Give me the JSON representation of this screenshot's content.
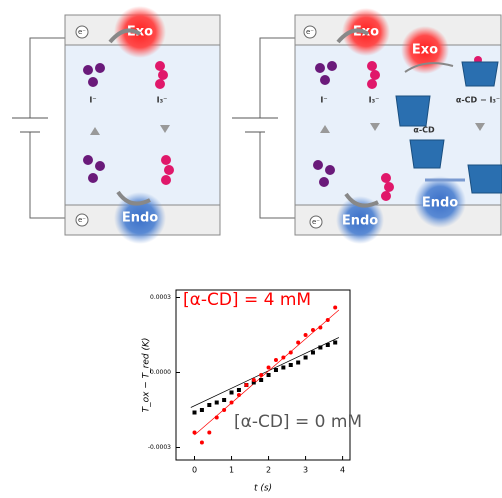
{
  "diagrams": [
    {
      "exo": "Exo",
      "endo": "Endo",
      "iodide": "I⁻",
      "triiodide": "I₃⁻",
      "electron_top": "e⁻",
      "electron_bottom": "e⁻"
    },
    {
      "exo_top": "Exo",
      "exo_right": "Exo",
      "endo_bottom": "Endo",
      "endo_right": "Endo",
      "iodide": "I⁻",
      "triiodide": "I₃⁻",
      "cd": "α-CD",
      "complex": "α-CD − I₃⁻",
      "electron_top": "e⁻",
      "electron_bottom": "e⁻"
    }
  ],
  "chart_data": {
    "type": "scatter",
    "xlabel": "t (s)",
    "ylabel": "T_ox − T_red (K)",
    "annotations": [
      {
        "text": "[α-CD] = 4 mM",
        "color": "#ff0000"
      },
      {
        "text": "[α-CD] = 0 mM",
        "color": "#555555"
      }
    ],
    "x": [
      0,
      0.2,
      0.4,
      0.6,
      0.8,
      1.0,
      1.2,
      1.4,
      1.6,
      1.8,
      2.0,
      2.2,
      2.4,
      2.6,
      2.8,
      3.0,
      3.2,
      3.4,
      3.6,
      3.8
    ],
    "series": [
      {
        "color": "#000000",
        "marker": "square",
        "values": [
          -0.00016,
          -0.00015,
          -0.00013,
          -0.00012,
          -0.00011,
          -8e-05,
          -7e-05,
          -5e-05,
          -4e-05,
          -3e-05,
          -1e-05,
          1e-05,
          2e-05,
          3e-05,
          4e-05,
          6e-05,
          8e-05,
          0.0001,
          0.00011,
          0.00012
        ]
      },
      {
        "color": "#ff0000",
        "marker": "circle",
        "values": [
          -0.00024,
          -0.00028,
          -0.00024,
          -0.00018,
          -0.00015,
          -0.00012,
          -9e-05,
          -5e-05,
          -3e-05,
          -1e-05,
          2e-05,
          5e-05,
          6e-05,
          8e-05,
          0.00012,
          0.00015,
          0.00017,
          0.00018,
          0.00021,
          0.00026
        ]
      }
    ],
    "fits": [
      {
        "color": "#000000",
        "x": [
          -0.1,
          3.9
        ],
        "values": [
          -0.00014,
          0.00014
        ]
      },
      {
        "color": "#ff0000",
        "x": [
          0,
          3.9
        ],
        "values": [
          -0.00025,
          0.00025
        ]
      }
    ],
    "xlim": [
      -0.5,
      4.2
    ],
    "ylim": [
      -0.00035,
      0.00033
    ],
    "xticks": [
      0,
      1,
      2,
      3,
      4
    ],
    "yticks": [
      -0.0003,
      {
        "value": 0,
        "label": "0.0000"
      },
      0.0003
    ]
  }
}
